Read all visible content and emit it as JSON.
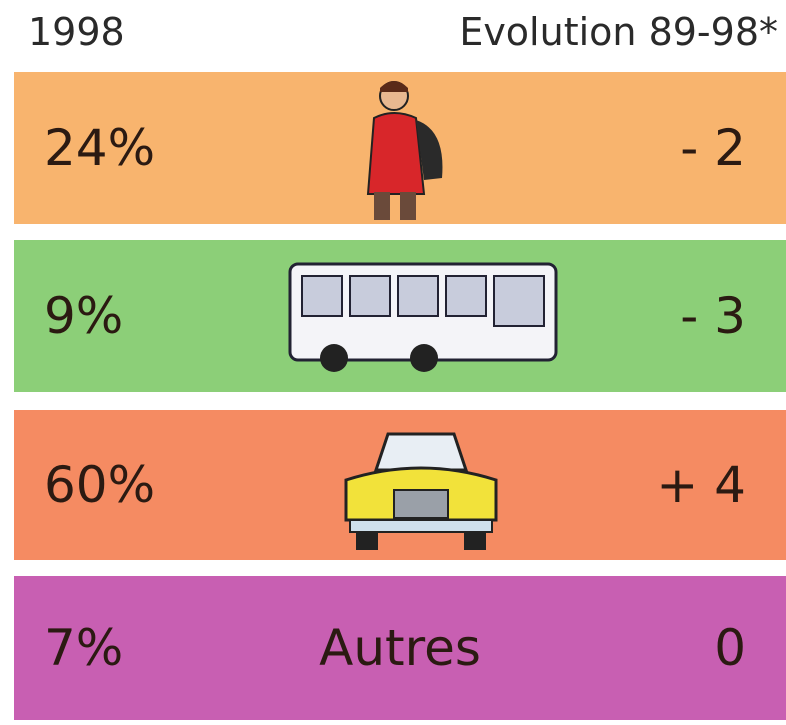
{
  "header": {
    "year": "1998",
    "evolution": "Evolution 89-98*"
  },
  "rows": [
    {
      "share": "24%",
      "change": "- 2"
    },
    {
      "share": "9%",
      "change": "- 3"
    },
    {
      "share": "60%",
      "change": "+ 4"
    },
    {
      "share": "7%",
      "label": "Autres",
      "change": "0"
    }
  ]
}
